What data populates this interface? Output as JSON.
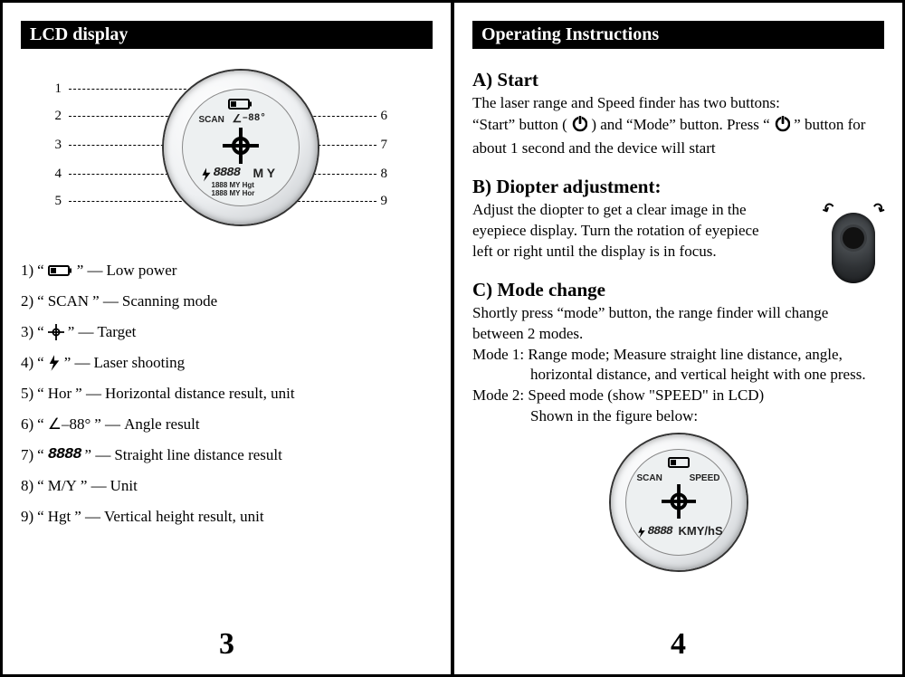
{
  "left": {
    "header": "LCD display",
    "page_number": "3",
    "diagram": {
      "rows": [
        {
          "id": "battery",
          "text": ""
        },
        {
          "scan": "SCAN",
          "angle_icon": "∠",
          "angle_val": "–88°"
        },
        {
          "id": "crosshair"
        },
        {
          "bolt": true,
          "digits": "8888",
          "unit": "M Y"
        },
        {
          "line1": "1888  MY Hgt",
          "line2": "1888  MY Hor"
        }
      ],
      "callouts_left": [
        "1",
        "2",
        "3",
        "4",
        "5"
      ],
      "callouts_right": [
        "6",
        "7",
        "8",
        "9"
      ]
    },
    "legend": [
      {
        "n": "1)",
        "icon": "battery",
        "label": "Low power"
      },
      {
        "n": "2)",
        "text": "SCAN",
        "label": "Scanning mode"
      },
      {
        "n": "3)",
        "icon": "crosshair",
        "label": "Target"
      },
      {
        "n": "4)",
        "icon": "bolt",
        "label": "Laser shooting"
      },
      {
        "n": "5)",
        "text": "Hor",
        "label": "Horizontal distance result, unit"
      },
      {
        "n": "6)",
        "text": "∠–88°",
        "label": "Angle result"
      },
      {
        "n": "7)",
        "text": "8888",
        "digits": true,
        "label": "Straight line distance result"
      },
      {
        "n": "8)",
        "text": "M/Y",
        "label": "Unit"
      },
      {
        "n": "9)",
        "text": "Hgt",
        "label": "Vertical height result, unit"
      }
    ]
  },
  "right": {
    "header": "Operating Instructions",
    "page_number": "4",
    "A": {
      "title": "A) Start",
      "line1": "The laser range and Speed finder has two buttons:",
      "line2a": "“Start” button (",
      "line2b": ") and “Mode” button. Press “ ",
      "line2c": " ” button for",
      "line3": "about 1 second and the device will start"
    },
    "B": {
      "title": "B) Diopter adjustment:",
      "p1": "Adjust the diopter to get a clear image in the",
      "p2": "eyepiece display. Turn the rotation of eyepiece",
      "p3": "left or right until the display is in focus."
    },
    "C": {
      "title": "C) Mode change",
      "p1": "Shortly press “mode” button, the range finder will change",
      "p2": "between 2 modes.",
      "m1a": "Mode 1: Range mode; Measure straight line distance, angle,",
      "m1b": "horizontal distance, and vertical height with one press.",
      "m2a": "Mode 2: Speed mode (show \"SPEED\" in LCD)",
      "m2b": "Shown in the figure below:"
    },
    "lcd_small": {
      "scan": "SCAN",
      "speed": "SPEED",
      "digits": "8888",
      "unit": "KMY/hS"
    }
  },
  "style": {
    "header_bg": "#000000",
    "header_fg": "#ffffff",
    "body_font_size": 17,
    "legend_font_size": 17,
    "lcd_outer_gradient": [
      "#ffffff",
      "#eef0f2",
      "#b8bcc0"
    ],
    "lcd_inner": "#edf0f1"
  }
}
